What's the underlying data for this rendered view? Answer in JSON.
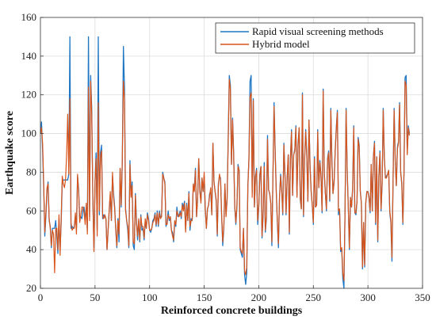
{
  "chart_data": {
    "type": "line",
    "xlabel": "Reinforced concrete buildings",
    "ylabel": "Earthquake score",
    "xlim": [
      0,
      350
    ],
    "ylim": [
      20,
      160
    ],
    "xticks": [
      "0",
      "50",
      "100",
      "150",
      "200",
      "250",
      "300",
      "350"
    ],
    "yticks": [
      "20",
      "40",
      "60",
      "80",
      "100",
      "120",
      "140",
      "160"
    ],
    "grid": true,
    "legend_position": "top-right",
    "colors": {
      "series0": "#1f77c4",
      "series1": "#d9541a"
    },
    "series": [
      {
        "name": "Rapid visual screening methods",
        "x_start": 0,
        "values": [
          100,
          106,
          91,
          72,
          47,
          57,
          70,
          75,
          55,
          52,
          41,
          51,
          51,
          51,
          55,
          47,
          38,
          56,
          40,
          54,
          75,
          76,
          76,
          76,
          76,
          76,
          79,
          150,
          51,
          52,
          51,
          52,
          57,
          51,
          78,
          71,
          56,
          57,
          56,
          61,
          62,
          55,
          62,
          50,
          150,
          57,
          130,
          113,
          66,
          41,
          75,
          90,
          50,
          150,
          58,
          90,
          94,
          56,
          58,
          57,
          56,
          40,
          50,
          60,
          68,
          55,
          78,
          69,
          62,
          50,
          41,
          56,
          44,
          82,
          62,
          85,
          145,
          123,
          61,
          55,
          50,
          41,
          86,
          68,
          75,
          42,
          40,
          69,
          55,
          45,
          55,
          44,
          58,
          50,
          51,
          45,
          55,
          51,
          59,
          56,
          50,
          49,
          51,
          55,
          56,
          59,
          52,
          60,
          52,
          60,
          56,
          58,
          80,
          77,
          75,
          52,
          54,
          60,
          55,
          57,
          50,
          49,
          44,
          54,
          52,
          62,
          57,
          58,
          60,
          56,
          64,
          62,
          65,
          50,
          64,
          55,
          70,
          50,
          56,
          55,
          73,
          72,
          82,
          57,
          67,
          87,
          71,
          65,
          77,
          70,
          78,
          61,
          51,
          61,
          63,
          69,
          70,
          58,
          95,
          75,
          70,
          65,
          47,
          74,
          78,
          77,
          57,
          42,
          51,
          74,
          58,
          66,
          98,
          130,
          125,
          84,
          108,
          90,
          62,
          53,
          62,
          84,
          81,
          40,
          38,
          36,
          51,
          27,
          22,
          28,
          73,
          87,
          127,
          130,
          69,
          118,
          62,
          78,
          82,
          53,
          62,
          79,
          83,
          46,
          58,
          85,
          49,
          56,
          99,
          71,
          69,
          64,
          42,
          78,
          116,
          92,
          71,
          54,
          41,
          67,
          79,
          71,
          58,
          95,
          79,
          58,
          77,
          89,
          48,
          87,
          102,
          68,
          89,
          92,
          104,
          68,
          95,
          103,
          66,
          61,
          121,
          57,
          87,
          102,
          88,
          65,
          107,
          83,
          70,
          63,
          53,
          88,
          62,
          63,
          102,
          72,
          86,
          78,
          59,
          123,
          80,
          69,
          60,
          87,
          91,
          65,
          113,
          86,
          69,
          75,
          91,
          103,
          112,
          58,
          61,
          39,
          40,
          25,
          20,
          59,
          113,
          81,
          62,
          40,
          67,
          62,
          72,
          104,
          59,
          58,
          65,
          98,
          94,
          70,
          64,
          30,
          54,
          31,
          64,
          70,
          70,
          67,
          59,
          84,
          60,
          88,
          96,
          53,
          88,
          44,
          78,
          91,
          60,
          74,
          113,
          88,
          77,
          78,
          79,
          81,
          59,
          54,
          34,
          75,
          113,
          86,
          73,
          93,
          96,
          116,
          80,
          74,
          53,
          79,
          129,
          130,
          90,
          104,
          100
        ],
        "values_comment": "RVS y values for buildings 0–339"
      },
      {
        "name": "Hybrid model",
        "x_start": 0,
        "values": [
          100,
          103,
          95,
          74,
          49,
          59,
          72,
          74,
          56,
          51,
          42,
          50,
          48,
          28,
          51,
          51,
          40,
          58,
          37,
          56,
          78,
          74,
          72,
          76,
          89,
          110,
          79,
          118,
          54,
          50,
          51,
          51,
          59,
          48,
          79,
          70,
          54,
          58,
          62,
          62,
          59,
          53,
          64,
          48,
          124,
          55,
          127,
          110,
          67,
          39,
          75,
          87,
          47,
          116,
          60,
          88,
          91,
          57,
          56,
          58,
          56,
          40,
          50,
          61,
          70,
          55,
          80,
          67,
          61,
          50,
          42,
          55,
          48,
          82,
          63,
          87,
          127,
          118,
          60,
          55,
          52,
          42,
          84,
          67,
          73,
          44,
          43,
          68,
          53,
          47,
          56,
          45,
          57,
          52,
          52,
          46,
          56,
          51,
          58,
          55,
          50,
          50,
          51,
          54,
          55,
          58,
          53,
          59,
          53,
          59,
          56,
          57,
          79,
          77,
          74,
          53,
          53,
          58,
          56,
          57,
          50,
          47,
          45,
          55,
          53,
          60,
          58,
          57,
          59,
          57,
          63,
          60,
          64,
          49,
          63,
          55,
          69,
          52,
          55,
          55,
          74,
          70,
          81,
          57,
          66,
          87,
          70,
          64,
          77,
          70,
          80,
          61,
          51,
          61,
          63,
          68,
          72,
          58,
          95,
          75,
          70,
          66,
          48,
          73,
          79,
          76,
          58,
          44,
          52,
          74,
          57,
          66,
          95,
          128,
          123,
          84,
          107,
          89,
          63,
          54,
          63,
          83,
          81,
          41,
          39,
          38,
          51,
          29,
          27,
          31,
          72,
          87,
          119,
          121,
          67,
          117,
          62,
          77,
          81,
          55,
          62,
          78,
          83,
          47,
          59,
          83,
          50,
          57,
          97,
          71,
          69,
          64,
          44,
          78,
          114,
          91,
          70,
          55,
          43,
          67,
          78,
          70,
          59,
          94,
          79,
          59,
          77,
          89,
          49,
          87,
          101,
          68,
          89,
          91,
          103,
          67,
          94,
          103,
          67,
          61,
          120,
          58,
          87,
          101,
          88,
          65,
          107,
          83,
          70,
          63,
          54,
          87,
          62,
          63,
          101,
          72,
          85,
          78,
          60,
          122,
          80,
          69,
          61,
          86,
          90,
          66,
          112,
          85,
          69,
          75,
          91,
          102,
          111,
          60,
          61,
          40,
          41,
          28,
          24,
          59,
          112,
          81,
          62,
          41,
          67,
          62,
          72,
          103,
          59,
          59,
          65,
          97,
          93,
          70,
          64,
          31,
          54,
          32,
          64,
          70,
          70,
          67,
          60,
          84,
          60,
          88,
          95,
          54,
          88,
          45,
          78,
          90,
          61,
          74,
          112,
          88,
          77,
          77,
          79,
          81,
          60,
          55,
          36,
          75,
          112,
          86,
          73,
          92,
          95,
          115,
          80,
          74,
          54,
          79,
          127,
          125,
          89,
          103,
          99
        ],
        "values_comment": "Hybrid y values for buildings 0–339"
      }
    ]
  }
}
